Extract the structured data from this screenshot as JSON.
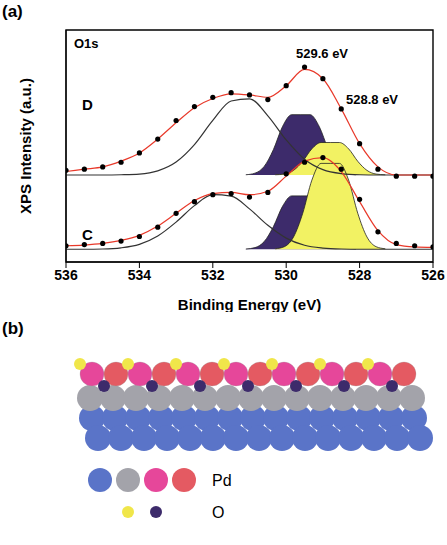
{
  "chart_data": {
    "type": "line",
    "panel": "(a)",
    "y_label": "XPS Intensity (a.u.)",
    "x_label": "Binding Energy (eV)",
    "annotations": [
      "O1s",
      "529.6 eV",
      "528.8 eV"
    ],
    "xlim": [
      536,
      526
    ],
    "xticks": [
      536,
      534,
      532,
      530,
      528,
      526
    ],
    "ylim": [
      0,
      100
    ],
    "tick_labels": "x",
    "grid": false,
    "series": [
      {
        "name": "D",
        "type": "scatter",
        "color": "#000000",
        "x": [
          536,
          535.5,
          535,
          534.5,
          534,
          533.5,
          533,
          532.5,
          532,
          531.5,
          531,
          530.5,
          530,
          529.5,
          529,
          528.5,
          528,
          527.5,
          527,
          526.5,
          526
        ],
        "values": [
          39.5,
          40,
          41,
          43,
          47,
          53,
          61,
          67,
          71,
          73,
          72,
          70,
          76,
          84,
          79,
          66,
          51,
          40,
          37,
          37,
          37
        ]
      },
      {
        "type": "area",
        "color": "#3d2b6b",
        "baseline": 37.5,
        "x": [
          531.1,
          530.85,
          530.6,
          530.35,
          530.1,
          529.85,
          529.6,
          529.35,
          529.1,
          528.85,
          528.6,
          528.35,
          528.1
        ],
        "values": [
          37.6,
          38.3,
          41.2,
          48.4,
          58.4,
          63.5,
          63.5,
          63.5,
          58.4,
          48.4,
          41.2,
          38.3,
          37.6
        ]
      },
      {
        "type": "area",
        "color": "#f2f263",
        "baseline": 37.5,
        "x": [
          530.3,
          530.05,
          529.8,
          529.55,
          529.3,
          529.05,
          528.8,
          528.55,
          528.3,
          528.05,
          527.8,
          527.55,
          527.3
        ],
        "values": [
          37.6,
          37.9,
          39.5,
          43.4,
          48.8,
          51.5,
          51.5,
          51.5,
          48.8,
          43.4,
          39.5,
          37.9,
          37.6
        ]
      },
      {
        "type": "line",
        "color": "#333333",
        "x": [
          536,
          535.5,
          535,
          534.5,
          534,
          533.5,
          533,
          532.5,
          532,
          531.5,
          531,
          530.5,
          530,
          529.5,
          529,
          528.5,
          528,
          527.5,
          527,
          526.5,
          526
        ],
        "values": [
          37.5,
          37.5,
          37.5,
          37.6,
          37.9,
          39.3,
          43.1,
          50.6,
          61,
          69.4,
          70.3,
          63,
          52.6,
          44.3,
          39.8,
          38.1,
          37.6,
          37.5,
          37.5,
          37.5,
          37.5
        ]
      },
      {
        "type": "line",
        "color": "#e8392a",
        "x": [
          536,
          535.5,
          535,
          534.5,
          534,
          533.5,
          533,
          532.5,
          532,
          531.5,
          531,
          530.5,
          530,
          529.5,
          529,
          528.5,
          528,
          527.5,
          527,
          526.5,
          526
        ],
        "values": [
          39,
          40,
          41,
          43.5,
          47,
          53,
          60,
          66.5,
          70.5,
          72.5,
          72,
          71,
          76,
          83,
          79,
          66,
          51,
          41,
          37.5,
          37.5,
          37.5
        ]
      },
      {
        "name": "C",
        "type": "scatter",
        "color": "#000000",
        "x": [
          536,
          535.5,
          535,
          534.5,
          534,
          533.5,
          533,
          532.5,
          532,
          531.5,
          531,
          530.5,
          530,
          529.5,
          529,
          528.5,
          528,
          527.5,
          527,
          526.5,
          526
        ],
        "values": [
          7,
          7.5,
          8,
          9,
          11,
          15,
          21,
          26,
          29,
          29.5,
          28,
          30,
          38,
          43,
          45,
          40,
          27,
          13,
          8,
          7,
          6.5
        ]
      },
      {
        "type": "area",
        "color": "#3d2b6b",
        "baseline": 5.5,
        "x": [
          531.1,
          530.85,
          530.6,
          530.35,
          530.1,
          529.85,
          529.6,
          529.35,
          529.1,
          528.85,
          528.6,
          528.35,
          528.1
        ],
        "values": [
          5.6,
          6.2,
          8.8,
          15.2,
          24,
          28.5,
          28.5,
          28.5,
          24,
          15.2,
          8.8,
          6.2,
          5.6
        ]
      },
      {
        "type": "area",
        "color": "#f2f263",
        "baseline": 5.5,
        "x": [
          530.3,
          530.05,
          529.8,
          529.55,
          529.3,
          529.05,
          528.8,
          528.55,
          528.3,
          528.05,
          527.8,
          527.55,
          527.3
        ],
        "values": [
          5.7,
          6.6,
          10.8,
          21,
          35.3,
          42.5,
          42.5,
          42.5,
          35.3,
          21,
          10.8,
          6.6,
          5.7
        ]
      },
      {
        "type": "line",
        "color": "#333333",
        "x": [
          536,
          535.5,
          535,
          534.5,
          534,
          533.5,
          533,
          532.5,
          532,
          531.5,
          531,
          530.5,
          530,
          529.5,
          529,
          528.5,
          528,
          527.5,
          527,
          526.5,
          526
        ],
        "values": [
          5.5,
          5.5,
          5.6,
          6.1,
          7.6,
          11.2,
          17.2,
          24.3,
          29,
          28.4,
          22.9,
          15.8,
          10.3,
          7.2,
          6,
          5.6,
          5.5,
          5.5,
          5.5,
          5.5,
          5.5
        ]
      },
      {
        "type": "line",
        "color": "#e8392a",
        "x": [
          536,
          535.5,
          535,
          534.5,
          534,
          533.5,
          533,
          532.5,
          532,
          531.5,
          531,
          530.5,
          530,
          529.5,
          529,
          528.5,
          528,
          527.5,
          527,
          526.5,
          526
        ],
        "values": [
          7,
          7.3,
          8,
          9.3,
          11.5,
          15.5,
          21,
          26.5,
          29.5,
          30,
          29,
          30.5,
          37,
          43.5,
          45,
          39,
          26,
          13.5,
          7.5,
          6.5,
          6.3
        ]
      }
    ]
  },
  "diagram": {
    "panel": "(b)",
    "legend_labels": [
      "Pd",
      "O"
    ]
  }
}
